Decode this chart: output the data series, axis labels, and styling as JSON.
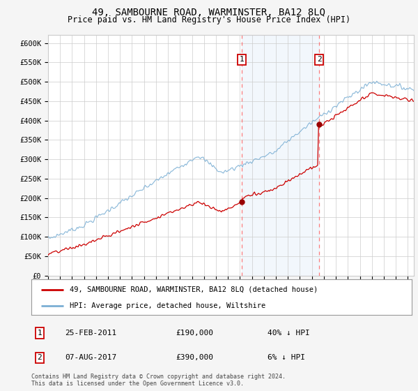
{
  "title": "49, SAMBOURNE ROAD, WARMINSTER, BA12 8LQ",
  "subtitle": "Price paid vs. HM Land Registry's House Price Index (HPI)",
  "legend_line1": "49, SAMBOURNE ROAD, WARMINSTER, BA12 8LQ (detached house)",
  "legend_line2": "HPI: Average price, detached house, Wiltshire",
  "transaction1_date": "25-FEB-2011",
  "transaction1_price": "£190,000",
  "transaction1_hpi": "40% ↓ HPI",
  "transaction1_year": 2011.15,
  "transaction2_date": "07-AUG-2017",
  "transaction2_price": "£390,000",
  "transaction2_hpi": "6% ↓ HPI",
  "transaction2_year": 2017.6,
  "footer": "Contains HM Land Registry data © Crown copyright and database right 2024.\nThis data is licensed under the Open Government Licence v3.0.",
  "ylim": [
    0,
    620000
  ],
  "yticks": [
    0,
    50000,
    100000,
    150000,
    200000,
    250000,
    300000,
    350000,
    400000,
    450000,
    500000,
    550000,
    600000
  ],
  "xlim_start": 1995,
  "xlim_end": 2025.5,
  "hpi_color": "#7bafd4",
  "price_color": "#cc0000",
  "vline_color": "#ff6666",
  "shade_color": "#ddeeff"
}
